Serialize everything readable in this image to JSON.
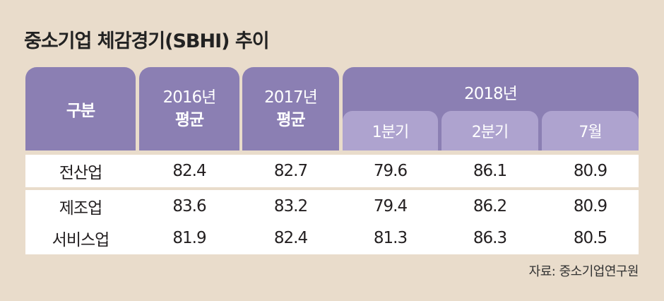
{
  "title": "중소기업 체감경기(SBHI) 추이",
  "header": {
    "category": "구분",
    "col2016": {
      "year": "2016년",
      "sub": "평균"
    },
    "col2017": {
      "year": "2017년",
      "sub": "평균"
    },
    "col2018": "2018년",
    "q1": "1분기",
    "q2": "2분기",
    "jul": "7월"
  },
  "source": "자료: 중소기업연구원",
  "chart_data": {
    "type": "table",
    "title": "중소기업 체감경기(SBHI) 추이",
    "columns": [
      "2016년 평균",
      "2017년 평균",
      "2018년 1분기",
      "2018년 2분기",
      "2018년 7월"
    ],
    "rows": [
      {
        "label": "전산업",
        "values": [
          "82.4",
          "82.7",
          "79.6",
          "86.1",
          "80.9"
        ]
      },
      {
        "label": "제조업",
        "values": [
          "83.6",
          "83.2",
          "79.4",
          "86.2",
          "80.9"
        ]
      },
      {
        "label": "서비스업",
        "values": [
          "81.9",
          "82.4",
          "81.3",
          "86.3",
          "80.5"
        ]
      }
    ]
  }
}
